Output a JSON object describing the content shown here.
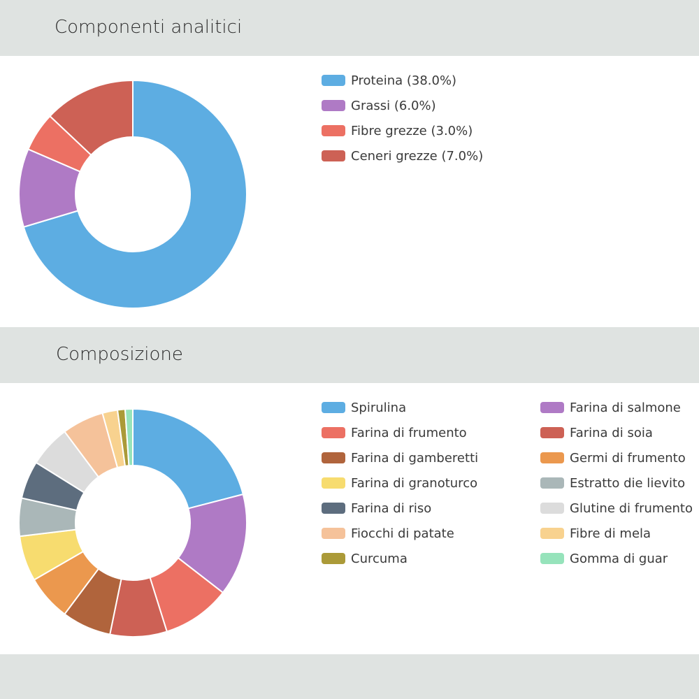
{
  "sections": [
    {
      "title": "Componenti analitici",
      "chart_data": {
        "type": "pie",
        "donut": true,
        "categories": [
          "Proteina",
          "Grassi",
          "Fibre grezze",
          "Ceneri grezze"
        ],
        "values": [
          38.0,
          6.0,
          3.0,
          7.0
        ],
        "legend": [
          "Proteina (38.0%)",
          "Grassi (6.0%)",
          "Fibre grezze (3.0%)",
          "Ceneri grezze (7.0%)"
        ],
        "colors": [
          "#5dade2",
          "#af7ac5",
          "#ec7063",
          "#cd6155"
        ],
        "legend_placement": "right"
      }
    },
    {
      "title": "Composizione",
      "chart_data": {
        "type": "pie",
        "donut": true,
        "categories": [
          "Spirulina",
          "Farina di salmone",
          "Farina di frumento",
          "Farina di soia",
          "Farina di gamberetti",
          "Germi di frumento",
          "Farina di granoturco",
          "Estratto die lievito",
          "Farina di riso",
          "Glutine di frumento",
          "Fiocchi di patate",
          "Fibre di mela",
          "Curcuma",
          "Gomma di guar"
        ],
        "values": [
          19.5,
          13.5,
          9.0,
          7.5,
          6.5,
          6.0,
          6.0,
          5.0,
          5.0,
          5.5,
          5.5,
          2.0,
          1.0,
          1.0
        ],
        "colors": [
          "#5dade2",
          "#af7ac5",
          "#ec7063",
          "#cd6155",
          "#b0643c",
          "#eb984e",
          "#f7dc6f",
          "#aab7b8",
          "#5d6d7e",
          "#dcdcdc",
          "#f5c29a",
          "#f8d28f",
          "#ab9a38",
          "#96e3bb"
        ],
        "legend_placement": "right"
      }
    }
  ]
}
